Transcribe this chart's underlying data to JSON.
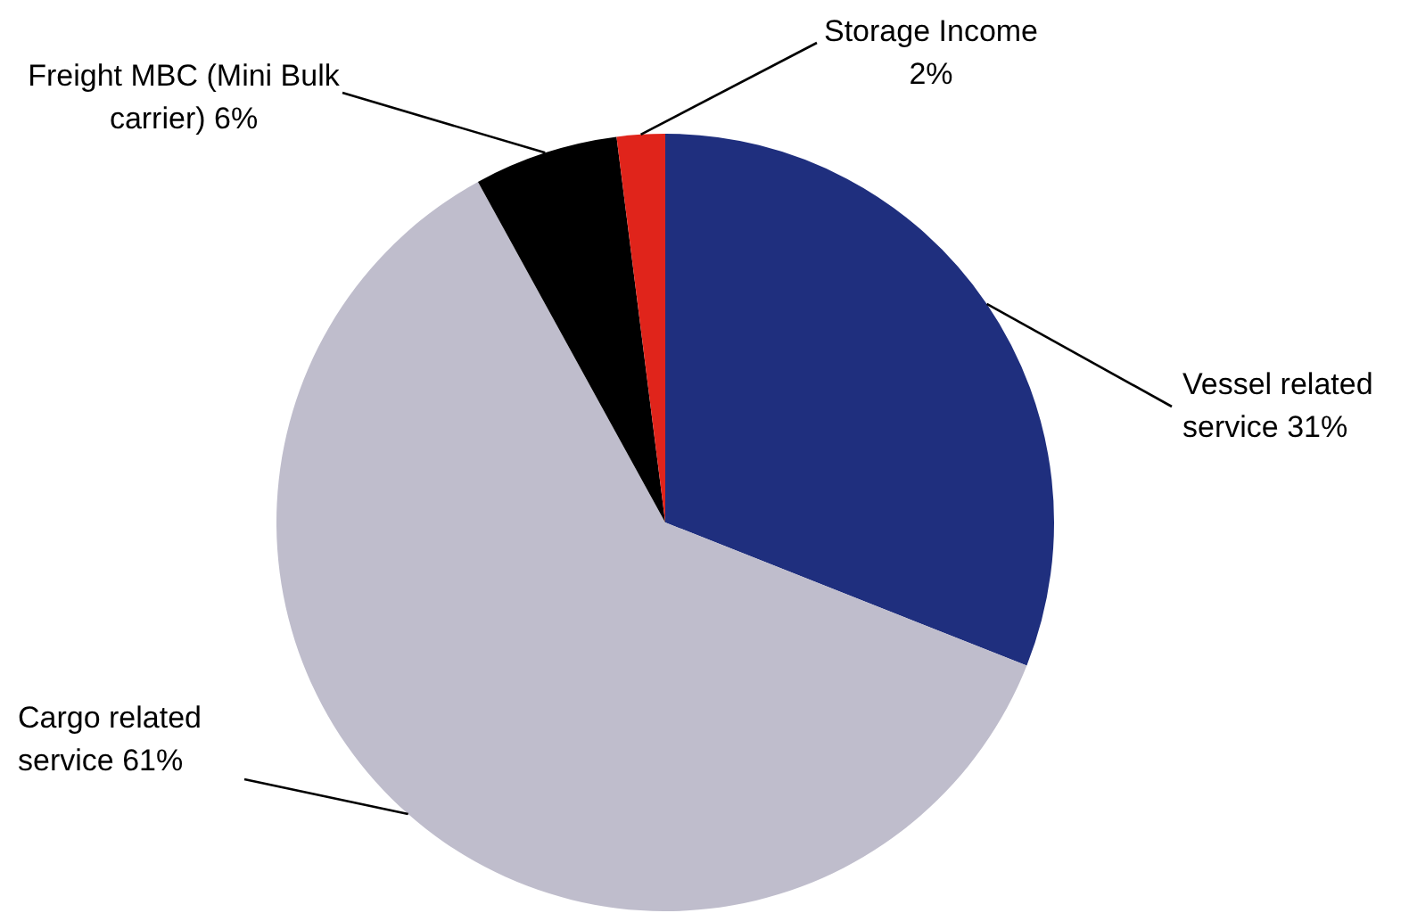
{
  "chart_data": {
    "type": "pie",
    "categories": [
      "Vessel related service",
      "Cargo related service",
      "Freight MBC (Mini Bulk carrier)",
      "Storage Income"
    ],
    "values": [
      31,
      61,
      6,
      2
    ],
    "value_labels": [
      "31%",
      "61%",
      "6%",
      "2%"
    ],
    "colors": [
      "#1f2f7e",
      "#bfbdcc",
      "#000000",
      "#e0241b"
    ],
    "legend": false
  }
}
